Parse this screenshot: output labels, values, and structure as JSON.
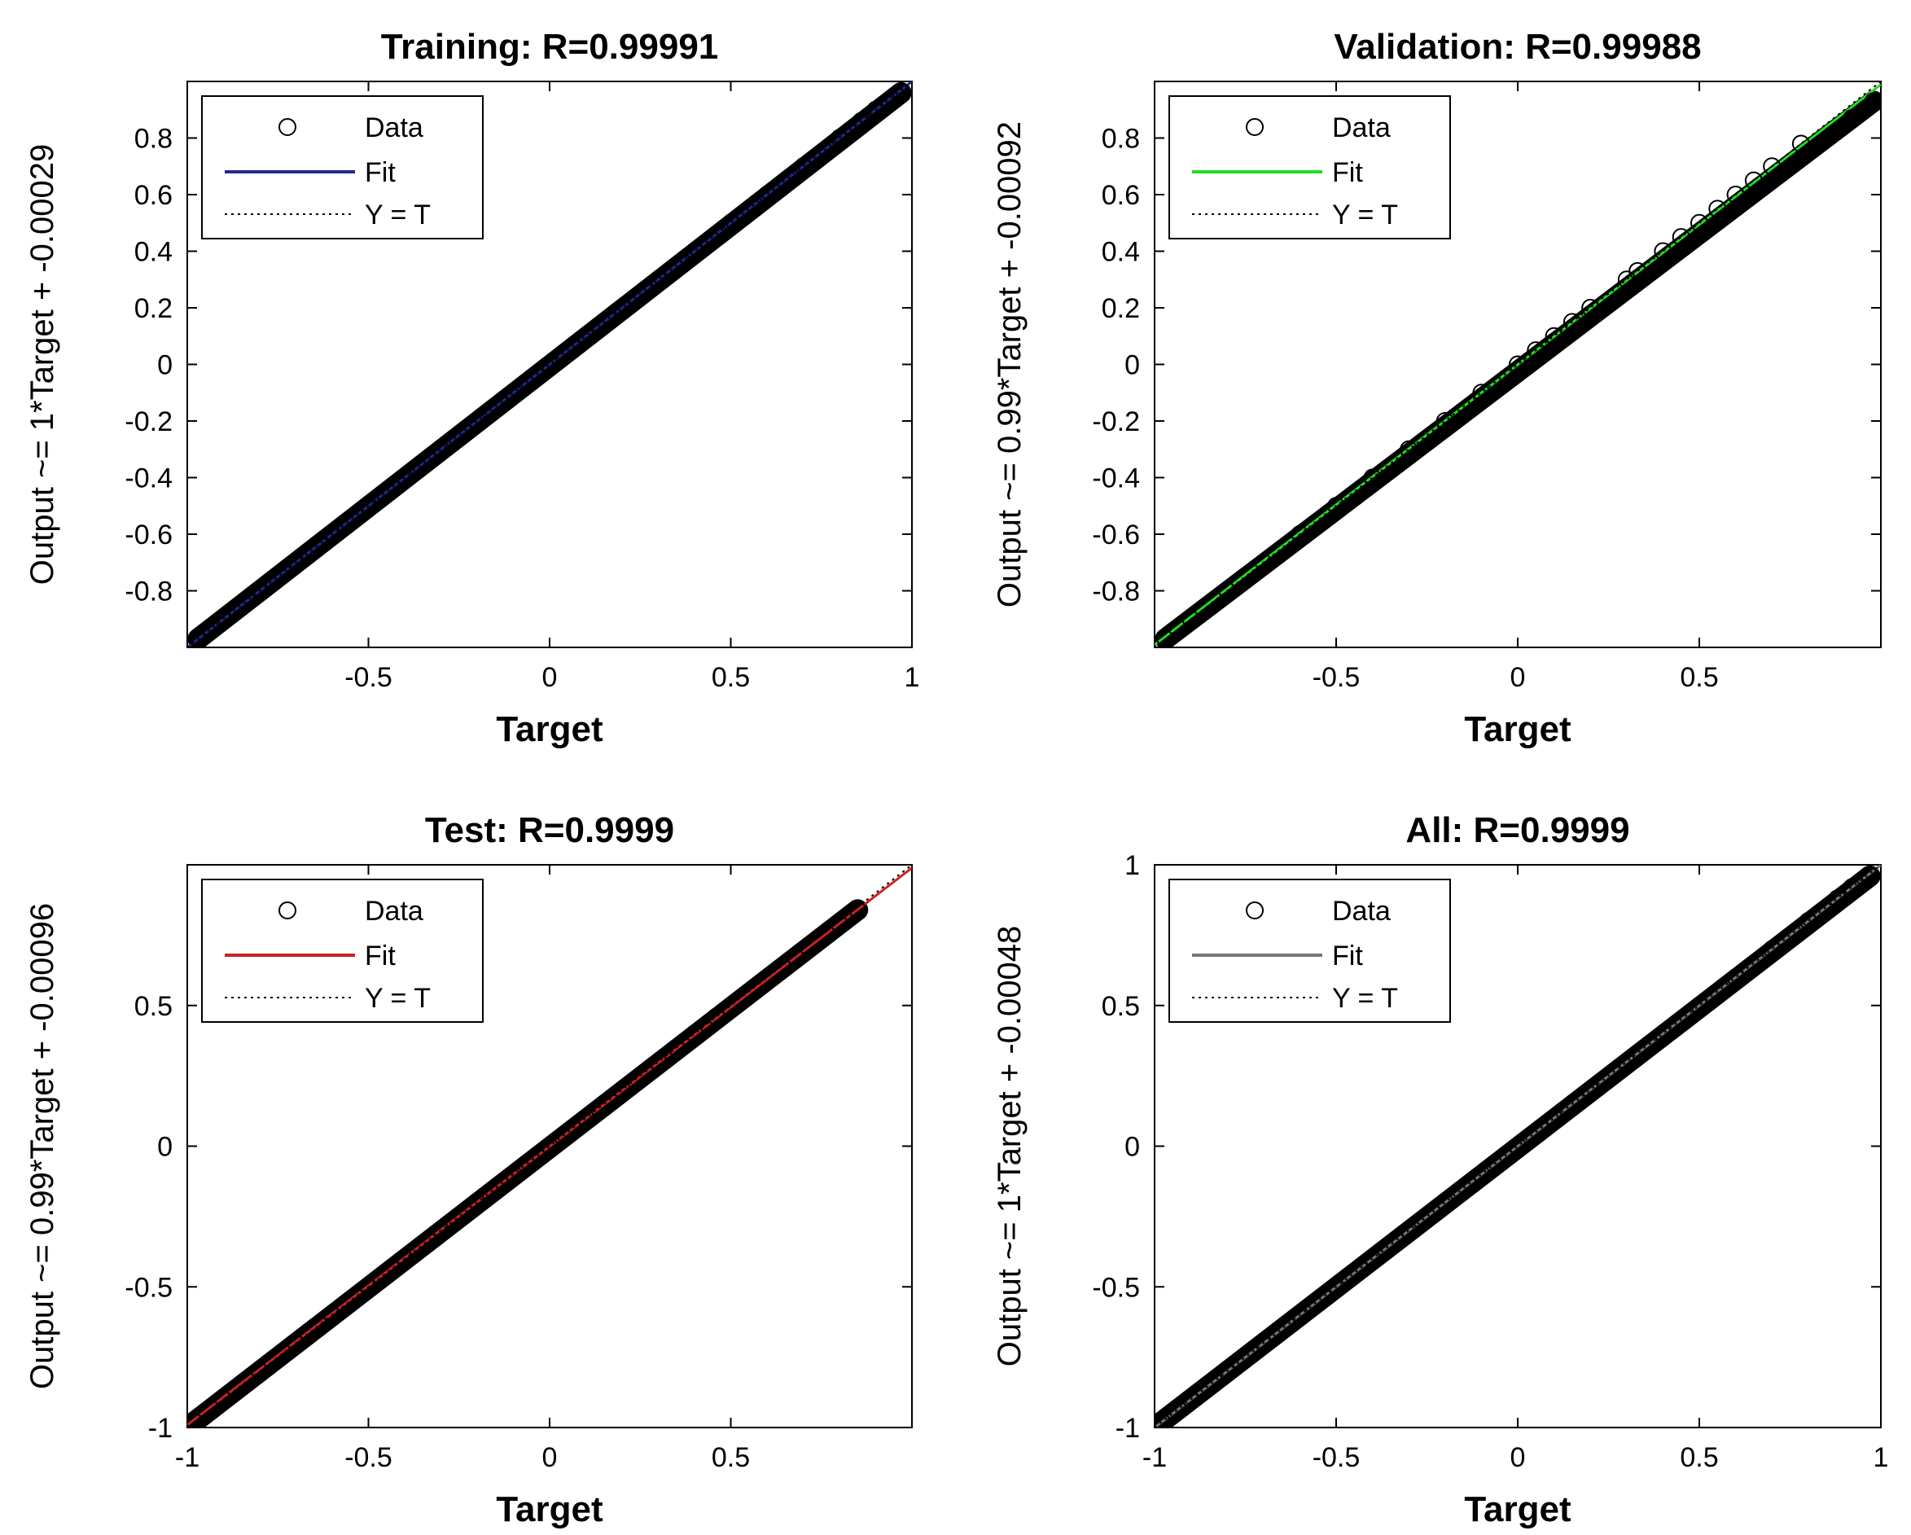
{
  "chart_data": [
    {
      "type": "scatter",
      "title": "Training: R=0.99991",
      "xlabel": "Target",
      "ylabel": "Output ~= 1*Target + -0.00029",
      "xlim": [
        -1,
        1
      ],
      "ylim": [
        -1,
        1
      ],
      "xticks": [
        -0.5,
        0,
        0.5,
        1
      ],
      "xtick_labels": [
        "-0.5",
        "0",
        "0.5",
        "1"
      ],
      "yticks": [
        -0.8,
        -0.6,
        -0.4,
        -0.2,
        0,
        0.2,
        0.4,
        0.6,
        0.8
      ],
      "ytick_labels": [
        "-0.8",
        "-0.6",
        "-0.4",
        "-0.2",
        "0",
        "0.2",
        "0.4",
        "0.6",
        "0.8"
      ],
      "fit": {
        "slope": 1,
        "intercept": -0.00029
      },
      "fit_color": "#1f2a8c",
      "legend": {
        "data": "Data",
        "fit": "Fit",
        "yt": "Y = T"
      },
      "series": [
        {
          "name": "Data",
          "x": [
            -0.97,
            -0.9,
            -0.8,
            -0.7,
            -0.6,
            -0.5,
            -0.4,
            -0.3,
            -0.2,
            -0.1,
            0,
            0.1,
            0.2,
            0.3,
            0.4,
            0.5,
            0.6,
            0.7,
            0.8,
            0.86,
            0.9,
            0.97
          ],
          "y": [
            -0.97,
            -0.9,
            -0.8,
            -0.7,
            -0.6,
            -0.5,
            -0.4,
            -0.3,
            -0.2,
            -0.1,
            0,
            0.1,
            0.2,
            0.3,
            0.4,
            0.5,
            0.6,
            0.7,
            0.8,
            0.86,
            0.9,
            0.96
          ]
        }
      ]
    },
    {
      "type": "scatter",
      "title": "Validation: R=0.99988",
      "xlabel": "Target",
      "ylabel": "Output ~= 0.99*Target + -0.00092",
      "xlim": [
        -1,
        1
      ],
      "ylim": [
        -1,
        1
      ],
      "xticks": [
        -0.5,
        0,
        0.5
      ],
      "xtick_labels": [
        "-0.5",
        "0",
        "0.5"
      ],
      "yticks": [
        -0.8,
        -0.6,
        -0.4,
        -0.2,
        0,
        0.2,
        0.4,
        0.6,
        0.8
      ],
      "ytick_labels": [
        "-0.8",
        "-0.6",
        "-0.4",
        "-0.2",
        "0",
        "0.2",
        "0.4",
        "0.6",
        "0.8"
      ],
      "fit": {
        "slope": 0.99,
        "intercept": -0.00092
      },
      "fit_color": "#22dd22",
      "legend": {
        "data": "Data",
        "fit": "Fit",
        "yt": "Y = T"
      },
      "series": [
        {
          "name": "Data",
          "x": [
            -0.97,
            -0.9,
            -0.8,
            -0.7,
            -0.6,
            -0.5,
            -0.4,
            -0.3,
            -0.2,
            -0.1,
            0,
            0.05,
            0.1,
            0.15,
            0.2,
            0.3,
            0.33,
            0.4,
            0.45,
            0.5,
            0.55,
            0.6,
            0.65,
            0.7,
            0.78,
            0.92,
            0.98
          ],
          "y": [
            -0.97,
            -0.9,
            -0.8,
            -0.7,
            -0.6,
            -0.5,
            -0.4,
            -0.3,
            -0.2,
            -0.1,
            0,
            0.05,
            0.1,
            0.15,
            0.2,
            0.3,
            0.33,
            0.4,
            0.45,
            0.5,
            0.55,
            0.6,
            0.65,
            0.7,
            0.78,
            0.87,
            0.93
          ]
        }
      ]
    },
    {
      "type": "scatter",
      "title": "Test: R=0.9999",
      "xlabel": "Target",
      "ylabel": "Output ~= 0.99*Target + -0.00096",
      "xlim": [
        -1,
        1
      ],
      "ylim": [
        -1,
        1
      ],
      "xticks": [
        -1,
        -0.5,
        0,
        0.5
      ],
      "xtick_labels": [
        "-1",
        "-0.5",
        "0",
        "0.5"
      ],
      "yticks": [
        -1,
        -0.5,
        0,
        0.5
      ],
      "ytick_labels": [
        "-1",
        "-0.5",
        "0",
        "0.5"
      ],
      "fit": {
        "slope": 0.99,
        "intercept": -0.00096
      },
      "fit_color": "#cc2222",
      "legend": {
        "data": "Data",
        "fit": "Fit",
        "yt": "Y = T"
      },
      "series": [
        {
          "name": "Data",
          "x": [
            -0.98,
            -0.9,
            -0.8,
            -0.7,
            -0.6,
            -0.5,
            -0.4,
            -0.3,
            -0.2,
            -0.1,
            0,
            0.1,
            0.2,
            0.3,
            0.35,
            0.4,
            0.46,
            0.68,
            0.8,
            0.85
          ],
          "y": [
            -0.98,
            -0.9,
            -0.8,
            -0.7,
            -0.6,
            -0.5,
            -0.4,
            -0.3,
            -0.2,
            -0.1,
            0,
            0.1,
            0.2,
            0.3,
            0.35,
            0.4,
            0.46,
            0.67,
            0.79,
            0.84
          ]
        }
      ]
    },
    {
      "type": "scatter",
      "title": "All: R=0.9999",
      "xlabel": "Target",
      "ylabel": "Output ~= 1*Target + -0.00048",
      "xlim": [
        -1,
        1
      ],
      "ylim": [
        -1,
        1
      ],
      "xticks": [
        -1,
        -0.5,
        0,
        0.5,
        1
      ],
      "xtick_labels": [
        "-1",
        "-0.5",
        "0",
        "0.5",
        "1"
      ],
      "yticks": [
        -1,
        -0.5,
        0,
        0.5,
        1
      ],
      "ytick_labels": [
        "-1",
        "-0.5",
        "0",
        "0.5",
        "1"
      ],
      "fit": {
        "slope": 1,
        "intercept": -0.00048
      },
      "fit_color": "#777777",
      "legend": {
        "data": "Data",
        "fit": "Fit",
        "yt": "Y = T"
      },
      "series": [
        {
          "name": "Data",
          "x": [
            -0.98,
            -0.9,
            -0.8,
            -0.7,
            -0.6,
            -0.5,
            -0.4,
            -0.3,
            -0.2,
            -0.1,
            0,
            0.1,
            0.2,
            0.3,
            0.4,
            0.5,
            0.6,
            0.7,
            0.8,
            0.88,
            0.92,
            0.97
          ],
          "y": [
            -0.98,
            -0.9,
            -0.8,
            -0.7,
            -0.6,
            -0.5,
            -0.4,
            -0.3,
            -0.2,
            -0.1,
            0,
            0.1,
            0.2,
            0.3,
            0.4,
            0.5,
            0.6,
            0.7,
            0.8,
            0.88,
            0.92,
            0.96
          ]
        }
      ]
    }
  ]
}
